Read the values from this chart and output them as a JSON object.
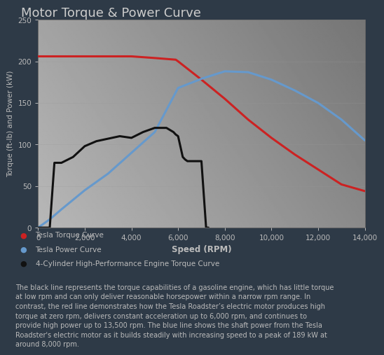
{
  "title": "Motor Torque & Power Curve",
  "xlabel": "Speed (RPM)",
  "ylabel": "Torque (ft-lb) and Power (kW)",
  "xlim": [
    0,
    14000
  ],
  "ylim": [
    0,
    250
  ],
  "xticks": [
    0,
    2000,
    4000,
    6000,
    8000,
    10000,
    12000,
    14000
  ],
  "yticks": [
    0,
    50,
    100,
    150,
    200,
    250
  ],
  "background_color": "#2e3a47",
  "title_color": "#cccccc",
  "tick_color": "#bbbbbb",
  "label_color": "#bbbbbb",
  "grid_color": "#999999",
  "legend_items": [
    {
      "label": "Tesla Torque Curve",
      "color": "#cc2222"
    },
    {
      "label": "Tesla Power Curve",
      "color": "#6699cc"
    },
    {
      "label": "4-Cylinder High-Performance Engine Torque Curve",
      "color": "#111111"
    }
  ],
  "annotation": "The black line represents the torque capabilities of a gasoline engine, which has little torque\nat low rpm and can only deliver reasonable horsepower within a narrow rpm range. In\ncontrast, the red line demonstrates how the Tesla Roadster’s electric motor produces high\ntorque at zero rpm, delivers constant acceleration up to 6,000 rpm, and continues to\nprovide high power up to 13,500 rpm. The blue line shows the shaft power from the Tesla\nRoadster's electric motor as it builds steadily with increasing speed to a peak of 189 kW at\naround 8,000 rpm.",
  "tesla_torque": {
    "rpm": [
      0,
      500,
      1000,
      2000,
      3000,
      4000,
      5000,
      5900,
      6000,
      7000,
      8000,
      9000,
      10000,
      11000,
      12000,
      13000,
      13500,
      14000
    ],
    "torque": [
      206,
      206,
      206,
      206,
      206,
      206,
      204,
      202,
      200,
      178,
      155,
      130,
      108,
      88,
      70,
      52,
      48,
      44
    ]
  },
  "tesla_power": {
    "rpm": [
      0,
      200,
      500,
      1000,
      2000,
      3000,
      4000,
      5000,
      6000,
      7000,
      8000,
      9000,
      10000,
      11000,
      12000,
      13000,
      14000
    ],
    "power": [
      0,
      4,
      10,
      22,
      45,
      65,
      90,
      115,
      168,
      179,
      188,
      187,
      178,
      165,
      150,
      130,
      105
    ]
  },
  "gas_torque": {
    "rpm": [
      0,
      100,
      200,
      500,
      700,
      1000,
      1500,
      2000,
      2500,
      3000,
      3500,
      4000,
      4500,
      5000,
      5500,
      5800,
      5900,
      6000,
      6200,
      6300,
      6400,
      7000,
      7200,
      7300
    ],
    "torque": [
      0,
      0,
      0,
      0,
      78,
      78,
      85,
      98,
      104,
      107,
      110,
      108,
      115,
      120,
      120,
      115,
      112,
      110,
      85,
      82,
      80,
      80,
      0,
      0
    ]
  }
}
